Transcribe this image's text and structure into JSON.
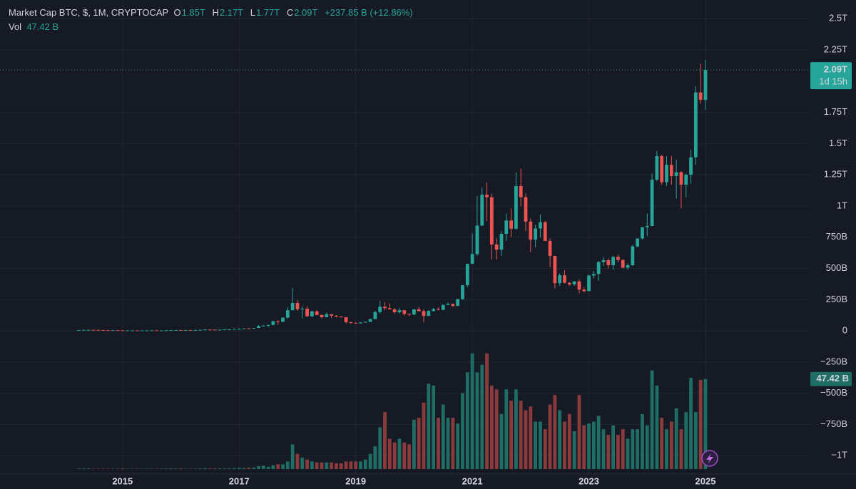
{
  "chart_data": {
    "type": "candlestick",
    "legend": {
      "symbol": "Market Cap BTC, $, 1M, CRYPTOCAP",
      "open_label": "O",
      "open": "1.85T",
      "high_label": "H",
      "high": "2.17T",
      "low_label": "L",
      "low": "1.77T",
      "close_label": "C",
      "close": "2.09T",
      "change": "+237.85 B (+12.86%)",
      "volume_label": "Vol",
      "volume": "47.42 B",
      "countdown": "1d 15h"
    },
    "categories": [
      null,
      null,
      null,
      null,
      null,
      null,
      null,
      null,
      null,
      "2015",
      null,
      null,
      null,
      null,
      null,
      null,
      null,
      null,
      null,
      null,
      null,
      null,
      null,
      null,
      null,
      null,
      null,
      null,
      null,
      null,
      null,
      null,
      null,
      "2017",
      null,
      null,
      null,
      null,
      null,
      null,
      null,
      null,
      null,
      null,
      null,
      null,
      null,
      null,
      null,
      null,
      null,
      null,
      null,
      null,
      null,
      null,
      null,
      "2019",
      null,
      null,
      null,
      null,
      null,
      null,
      null,
      null,
      null,
      null,
      null,
      null,
      null,
      null,
      null,
      null,
      null,
      null,
      null,
      null,
      null,
      null,
      null,
      "2021",
      null,
      null,
      null,
      null,
      null,
      null,
      null,
      null,
      null,
      null,
      null,
      null,
      null,
      null,
      null,
      null,
      null,
      null,
      null,
      null,
      null,
      null,
      null,
      "2023",
      null,
      null,
      null,
      null,
      null,
      null,
      null,
      null,
      null,
      null,
      null,
      null,
      null,
      null,
      null,
      null,
      null,
      null,
      null,
      null,
      null,
      null,
      null,
      "2025"
    ],
    "open": [
      5.5,
      6,
      8,
      8,
      7.6,
      6.3,
      5,
      4.5,
      5,
      4.4,
      3.1,
      3.5,
      3.5,
      3.3,
      3.3,
      3.7,
      4.1,
      3.5,
      3.5,
      4.7,
      5.4,
      6.4,
      5.7,
      6.7,
      6.5,
      7,
      8.4,
      10.7,
      10.3,
      9.2,
      9.6,
      11.7,
      11.8,
      15.5,
      15.6,
      19.4,
      17.2,
      22.8,
      37.6,
      40.5,
      47.8,
      77.5,
      72.3,
      106,
      165,
      223,
      173,
      177,
      117,
      156,
      127,
      109,
      133,
      121,
      114,
      109,
      70,
      64,
      60,
      67,
      72,
      94,
      150,
      193,
      181,
      172,
      149,
      165,
      136,
      131,
      172,
      158,
      119,
      159,
      174,
      168,
      208,
      216,
      200,
      254,
      365,
      537,
      615,
      843,
      1090,
      1070,
      692,
      650,
      777,
      884,
      818,
      1160,
      1070,
      875,
      730,
      820,
      870,
      720,
      600,
      382,
      445,
      385,
      372,
      395,
      330,
      318,
      443,
      455,
      551,
      566,
      526,
      592,
      568,
      506,
      526,
      676,
      740,
      830,
      840,
      1210,
      1400,
      1190,
      1330,
      1240,
      1270,
      1170,
      1250,
      1390,
      1910,
      1850
    ],
    "high": [
      6.3,
      8.5,
      9,
      8.3,
      7.7,
      6.5,
      5.4,
      5.6,
      5.3,
      4.5,
      3.8,
      3.9,
      3.6,
      3.5,
      3.8,
      4.4,
      4.3,
      3.6,
      4.9,
      6.5,
      6.7,
      7,
      7,
      7,
      7.1,
      8.6,
      12,
      10.9,
      9.8,
      9.8,
      11.8,
      12.1,
      15.8,
      18.3,
      19.4,
      21.4,
      22.9,
      45,
      49,
      48,
      78,
      82.5,
      106.5,
      190,
      343,
      245,
      196,
      196,
      162,
      165,
      131,
      146,
      132,
      126,
      117,
      109,
      70,
      70,
      71,
      73,
      95,
      161,
      240,
      230,
      220,
      182,
      186,
      165,
      137,
      175,
      190,
      172,
      165,
      184,
      188,
      210,
      226,
      218,
      256,
      368,
      537,
      780,
      1080,
      1145,
      1190,
      1100,
      740,
      800,
      940,
      980,
      1270,
      1300,
      1100,
      900,
      850,
      930,
      880,
      740,
      600,
      460,
      485,
      390,
      400,
      410,
      350,
      450,
      480,
      560,
      590,
      580,
      600,
      610,
      570,
      540,
      690,
      740,
      830,
      940,
      1260,
      1440,
      1410,
      1400,
      1400,
      1370,
      1280,
      1260,
      1450,
      1960,
      2140,
      2170
    ],
    "low": [
      5.2,
      5.9,
      7.5,
      7.3,
      5.9,
      4.7,
      4.1,
      4.4,
      4.3,
      2.4,
      2.9,
      3.2,
      3.1,
      3.2,
      3.2,
      3.7,
      2.9,
      3.3,
      3.5,
      4.5,
      5.2,
      5.5,
      5.5,
      6.2,
      6.5,
      7,
      8.4,
      8.4,
      8.6,
      9.2,
      9.6,
      11.1,
      11.8,
      12.3,
      15.3,
      14.9,
      17,
      22.7,
      33,
      31,
      44,
      49,
      69,
      98,
      170,
      158,
      100,
      110,
      108,
      125,
      100,
      108,
      102,
      108,
      106,
      60,
      55,
      59,
      60,
      66,
      71,
      92,
      138,
      165,
      170,
      139,
      138,
      121,
      116,
      126,
      155,
      70,
      119,
      155,
      165,
      166,
      206,
      190,
      197,
      250,
      350,
      540,
      600,
      840,
      880,
      570,
      570,
      600,
      720,
      750,
      810,
      1000,
      800,
      630,
      670,
      750,
      720,
      510,
      340,
      360,
      380,
      360,
      360,
      300,
      310,
      320,
      420,
      400,
      520,
      500,
      490,
      550,
      500,
      490,
      520,
      670,
      730,
      760,
      840,
      1200,
      1170,
      1160,
      1170,
      1060,
      980,
      1070,
      1180,
      1330,
      1820,
      1770
    ],
    "close": [
      6,
      8,
      8,
      7.6,
      6.3,
      5,
      4.5,
      5,
      4.4,
      3.1,
      3.5,
      3.5,
      3.3,
      3.3,
      3.7,
      4.1,
      3.5,
      3.5,
      4.7,
      5.4,
      6.4,
      5.7,
      6.7,
      6.5,
      7,
      8.4,
      10.7,
      10.3,
      9.2,
      9.6,
      11.7,
      11.8,
      15.5,
      15.6,
      19.4,
      17.2,
      22.8,
      37.6,
      40.5,
      47.8,
      77.5,
      72.3,
      106,
      165,
      223,
      173,
      177,
      117,
      156,
      127,
      109,
      133,
      121,
      114,
      109,
      70,
      64,
      60,
      67,
      72,
      94,
      150,
      193,
      181,
      172,
      149,
      165,
      136,
      131,
      172,
      158,
      119,
      159,
      174,
      168,
      208,
      216,
      200,
      254,
      365,
      537,
      615,
      843,
      1090,
      1070,
      692,
      650,
      777,
      884,
      818,
      1160,
      1070,
      875,
      730,
      820,
      870,
      720,
      600,
      382,
      445,
      385,
      372,
      395,
      330,
      318,
      443,
      455,
      551,
      566,
      526,
      592,
      568,
      506,
      526,
      676,
      740,
      830,
      840,
      1210,
      1400,
      1190,
      1330,
      1240,
      1270,
      1170,
      1250,
      1390,
      1910,
      1850,
      2090
    ],
    "volume": [
      0.3,
      0.3,
      0.3,
      0.2,
      0.2,
      0.2,
      0.2,
      0.2,
      0.2,
      0.3,
      0.2,
      0.2,
      0.2,
      0.2,
      0.2,
      0.2,
      0.2,
      0.2,
      0.3,
      0.3,
      0.3,
      0.3,
      0.2,
      0.2,
      0.2,
      0.3,
      0.4,
      0.3,
      0.3,
      0.3,
      0.3,
      0.4,
      0.5,
      0.6,
      0.5,
      0.7,
      0.8,
      1.5,
      1.8,
      1.2,
      2,
      2.5,
      2.5,
      4,
      13,
      8,
      6,
      5,
      4,
      3.5,
      3.5,
      3.5,
      3.5,
      3,
      3,
      4,
      4,
      4,
      4,
      5,
      8,
      12,
      22,
      30,
      16,
      14,
      16,
      14,
      13,
      26,
      27,
      35,
      45,
      44,
      27,
      34,
      27,
      27,
      24,
      40,
      51,
      61,
      51,
      55,
      61,
      44,
      42,
      29,
      42,
      36,
      42,
      36,
      31,
      33,
      25,
      25,
      21,
      34,
      39,
      31,
      25,
      29,
      20,
      39,
      23,
      24,
      25,
      28,
      21,
      18,
      23,
      18,
      21,
      16,
      21,
      21,
      29,
      23,
      52,
      44,
      27,
      21,
      25,
      32,
      21,
      30,
      48,
      30,
      47,
      47.42
    ],
    "ylim": [
      -1130,
      2650
    ],
    "yticks": [
      {
        "value": 2500,
        "label": "2.5T"
      },
      {
        "value": 2250,
        "label": "2.25T"
      },
      {
        "value": 1750,
        "label": "1.75T"
      },
      {
        "value": 1500,
        "label": "1.5T"
      },
      {
        "value": 1250,
        "label": "1.25T"
      },
      {
        "value": 1000,
        "label": "1T"
      },
      {
        "value": 750,
        "label": "750B"
      },
      {
        "value": 500,
        "label": "500B"
      },
      {
        "value": 250,
        "label": "250B"
      },
      0,
      {
        "value": -250,
        "label": "−250B"
      },
      {
        "value": -500,
        "label": "−500B"
      },
      {
        "value": -750,
        "label": "−750B"
      },
      {
        "value": -1000,
        "label": "−1T"
      }
    ],
    "volume_ylim": [
      0,
      62
    ],
    "grid": true,
    "up_color": "#26a69a",
    "down_color": "#ef5350",
    "volume_up_color": "#1f6e66",
    "volume_down_color": "#8c3b3d"
  }
}
